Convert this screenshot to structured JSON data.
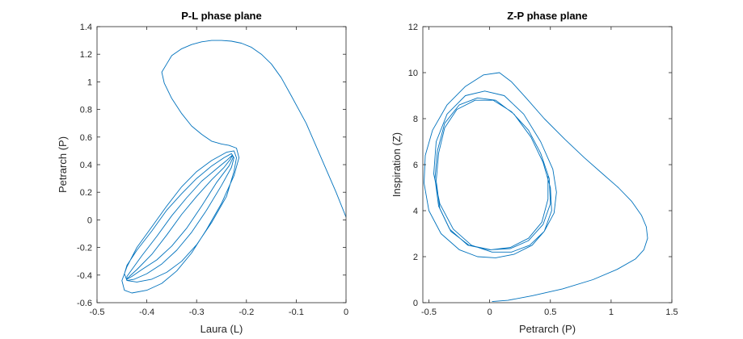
{
  "chart_data": [
    {
      "type": "line",
      "title": "P-L phase plane",
      "xlabel": "Laura (L)",
      "ylabel": "Petrarch (P)",
      "xlim": [
        -0.5,
        0
      ],
      "ylim": [
        -0.6,
        1.4
      ],
      "xticks": [
        -0.5,
        -0.4,
        -0.3,
        -0.2,
        -0.1,
        0
      ],
      "xtick_labels": [
        "-0.5",
        "-0.4",
        "-0.3",
        "-0.2",
        "-0.1",
        "0"
      ],
      "yticks": [
        -0.6,
        -0.4,
        -0.2,
        0,
        0.2,
        0.4,
        0.6,
        0.8,
        1,
        1.2,
        1.4
      ],
      "ytick_labels": [
        "-0.6",
        "-0.4",
        "-0.2",
        "0",
        "0.2",
        "0.4",
        "0.6",
        "0.8",
        "1",
        "1.2",
        "1.4"
      ],
      "grid": false,
      "line_color": "#0072BD",
      "series": [
        {
          "x": [
            0,
            -0.02,
            -0.05,
            -0.08,
            -0.11,
            -0.13,
            -0.15,
            -0.17,
            -0.19,
            -0.21,
            -0.23,
            -0.25,
            -0.27,
            -0.29,
            -0.31,
            -0.33,
            -0.35,
            -0.36,
            -0.37,
            -0.365,
            -0.35,
            -0.33,
            -0.31,
            -0.29,
            -0.27,
            -0.25,
            -0.235,
            -0.22,
            -0.215,
            -0.225,
            -0.25,
            -0.28,
            -0.31,
            -0.34,
            -0.37,
            -0.4,
            -0.43,
            -0.445,
            -0.45,
            -0.44,
            -0.42,
            -0.39,
            -0.36,
            -0.33,
            -0.3,
            -0.27,
            -0.24,
            -0.225,
            -0.22,
            -0.225,
            -0.24,
            -0.27,
            -0.3,
            -0.33,
            -0.36,
            -0.39,
            -0.42,
            -0.44,
            -0.445,
            -0.44,
            -0.42,
            -0.39,
            -0.36,
            -0.33,
            -0.3,
            -0.27,
            -0.245,
            -0.23,
            -0.225,
            -0.23,
            -0.25,
            -0.28,
            -0.31,
            -0.34,
            -0.37,
            -0.4,
            -0.425,
            -0.44,
            -0.44,
            -0.43,
            -0.41,
            -0.38,
            -0.35,
            -0.32,
            -0.29,
            -0.26,
            -0.24,
            -0.228,
            -0.227,
            -0.235,
            -0.26,
            -0.29,
            -0.32,
            -0.35,
            -0.38,
            -0.41,
            -0.43,
            -0.44,
            -0.435,
            -0.42,
            -0.39,
            -0.36,
            -0.33,
            -0.3,
            -0.27,
            -0.245,
            -0.232,
            -0.228
          ],
          "y": [
            0.02,
            0.2,
            0.45,
            0.7,
            0.9,
            1.03,
            1.13,
            1.2,
            1.25,
            1.28,
            1.295,
            1.3,
            1.3,
            1.29,
            1.27,
            1.24,
            1.19,
            1.13,
            1.07,
            0.99,
            0.88,
            0.77,
            0.68,
            0.62,
            0.57,
            0.55,
            0.54,
            0.52,
            0.45,
            0.32,
            0.12,
            -0.07,
            -0.24,
            -0.37,
            -0.46,
            -0.51,
            -0.53,
            -0.51,
            -0.44,
            -0.34,
            -0.2,
            -0.05,
            0.1,
            0.24,
            0.35,
            0.43,
            0.49,
            0.5,
            0.45,
            0.35,
            0.17,
            -0.02,
            -0.18,
            -0.3,
            -0.38,
            -0.43,
            -0.45,
            -0.44,
            -0.39,
            -0.33,
            -0.22,
            -0.08,
            0.07,
            0.19,
            0.3,
            0.39,
            0.45,
            0.48,
            0.45,
            0.38,
            0.25,
            0.07,
            -0.09,
            -0.22,
            -0.32,
            -0.39,
            -0.43,
            -0.44,
            -0.41,
            -0.36,
            -0.26,
            -0.12,
            0.03,
            0.16,
            0.28,
            0.37,
            0.43,
            0.47,
            0.45,
            0.39,
            0.27,
            0.1,
            -0.06,
            -0.19,
            -0.29,
            -0.36,
            -0.41,
            -0.43,
            -0.41,
            -0.36,
            -0.25,
            -0.11,
            0.04,
            0.17,
            0.29,
            0.38,
            0.44,
            0.47
          ]
        }
      ]
    },
    {
      "type": "line",
      "title": "Z-P phase plane",
      "xlabel": "Petrarch (P)",
      "ylabel": "Inspiration (Z)",
      "xlim": [
        -0.55,
        1.5
      ],
      "ylim": [
        0,
        12
      ],
      "xticks": [
        -0.5,
        0,
        0.5,
        1,
        1.5
      ],
      "xtick_labels": [
        "-0.5",
        "0",
        "0.5",
        "1",
        "1.5"
      ],
      "yticks": [
        0,
        2,
        4,
        6,
        8,
        10,
        12
      ],
      "ytick_labels": [
        "0",
        "2",
        "4",
        "6",
        "8",
        "10",
        "12"
      ],
      "grid": false,
      "line_color": "#0072BD",
      "series": [
        {
          "x": [
            0.02,
            0.15,
            0.35,
            0.6,
            0.85,
            1.05,
            1.2,
            1.27,
            1.3,
            1.29,
            1.25,
            1.17,
            1.06,
            0.93,
            0.78,
            0.62,
            0.45,
            0.3,
            0.18,
            0.08,
            -0.05,
            -0.2,
            -0.35,
            -0.47,
            -0.53,
            -0.54,
            -0.5,
            -0.4,
            -0.25,
            -0.1,
            0.05,
            0.2,
            0.35,
            0.45,
            0.53,
            0.55,
            0.52,
            0.42,
            0.28,
            0.12,
            -0.04,
            -0.2,
            -0.35,
            -0.44,
            -0.46,
            -0.41,
            -0.3,
            -0.15,
            0.02,
            0.18,
            0.33,
            0.45,
            0.51,
            0.5,
            0.44,
            0.34,
            0.2,
            0.05,
            -0.1,
            -0.25,
            -0.37,
            -0.43,
            -0.45,
            -0.42,
            -0.33,
            -0.18,
            0,
            0.17,
            0.32,
            0.44,
            0.5,
            0.49,
            0.42,
            0.32,
            0.18,
            0.03,
            -0.12,
            -0.27,
            -0.37,
            -0.42,
            -0.44,
            -0.41,
            -0.32,
            -0.17,
            0.01,
            0.17,
            0.32,
            0.43,
            0.48,
            0.48
          ],
          "y": [
            0.05,
            0.1,
            0.3,
            0.6,
            1.0,
            1.45,
            1.9,
            2.3,
            2.8,
            3.3,
            3.8,
            4.4,
            5.0,
            5.6,
            6.3,
            7.1,
            8.0,
            8.9,
            9.6,
            10.0,
            9.9,
            9.4,
            8.6,
            7.5,
            6.4,
            5.2,
            4.0,
            3.0,
            2.3,
            2.0,
            1.95,
            2.1,
            2.5,
            3.1,
            3.9,
            4.8,
            5.8,
            7.0,
            8.2,
            9.0,
            9.2,
            9.0,
            8.2,
            7.0,
            5.6,
            4.3,
            3.2,
            2.5,
            2.2,
            2.2,
            2.5,
            3.1,
            4.0,
            5.0,
            6.1,
            7.2,
            8.2,
            8.8,
            8.9,
            8.6,
            7.8,
            6.6,
            5.4,
            4.2,
            3.2,
            2.5,
            2.3,
            2.35,
            2.7,
            3.4,
            4.3,
            5.4,
            6.5,
            7.5,
            8.3,
            8.8,
            8.8,
            8.4,
            7.6,
            6.5,
            5.3,
            4.1,
            3.1,
            2.5,
            2.3,
            2.4,
            2.8,
            3.5,
            4.5,
            5.5
          ]
        }
      ]
    }
  ]
}
